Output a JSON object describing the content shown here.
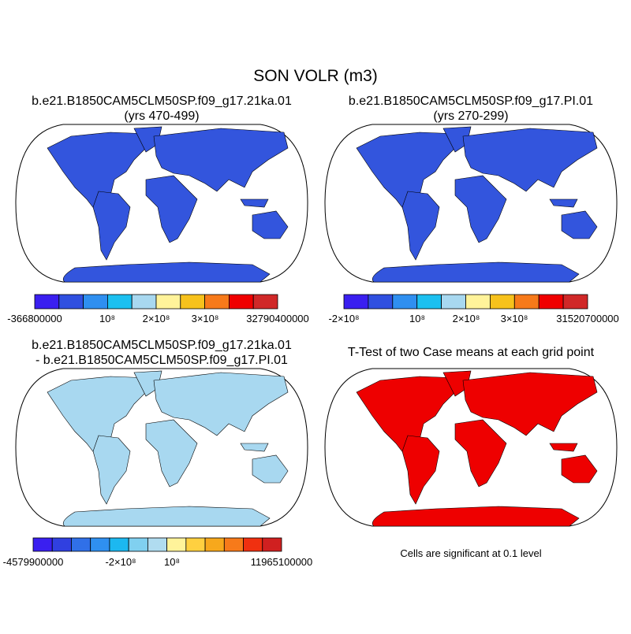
{
  "title": "SON VOLR (m3)",
  "panels": [
    {
      "title": "b.e21.B1850CAM5CLM50SP.f09_g17.21ka.01",
      "subtitle": "(yrs 470-499)",
      "colorbar": {
        "colors": [
          "#3a1ff0",
          "#3050e0",
          "#2f8ff0",
          "#1cc0f0",
          "#a8d8f0",
          "#fff39a",
          "#f7c21c",
          "#f77a1a",
          "#f00000",
          "#d02828"
        ],
        "labels": [
          "-366800000",
          "10⁸",
          "2×10⁸",
          "3×10⁸",
          "32790400000"
        ]
      }
    },
    {
      "title": "b.e21.B1850CAM5CLM50SP.f09_g17.PI.01",
      "subtitle": "(yrs 270-299)",
      "colorbar": {
        "colors": [
          "#3a1ff0",
          "#3050e0",
          "#2f8ff0",
          "#1cc0f0",
          "#a8d8f0",
          "#fff39a",
          "#f7c21c",
          "#f77a1a",
          "#f00000",
          "#d02828"
        ],
        "labels": [
          "-2×10⁸",
          "10⁸",
          "2×10⁸",
          "3×10⁸",
          "31520700000"
        ]
      }
    },
    {
      "title": "b.e21.B1850CAM5CLM50SP.f09_g17.21ka.01",
      "subtitle": "- b.e21.B1850CAM5CLM50SP.f09_g17.PI.01",
      "colorbar": {
        "colors": [
          "#3a1ff0",
          "#3040e0",
          "#3070e8",
          "#2f90f0",
          "#1cb8f0",
          "#80d0f0",
          "#b0dcf0",
          "#fff39a",
          "#ffd040",
          "#f7a81c",
          "#f77a1a",
          "#f03010",
          "#d02020"
        ],
        "labels": [
          "-4579900000",
          "-2×10⁸",
          "10⁸",
          "11965100000"
        ]
      }
    },
    {
      "title": "T-Test of two Case means at each grid point",
      "note": "Cells are significant at 0.1 level"
    }
  ]
}
